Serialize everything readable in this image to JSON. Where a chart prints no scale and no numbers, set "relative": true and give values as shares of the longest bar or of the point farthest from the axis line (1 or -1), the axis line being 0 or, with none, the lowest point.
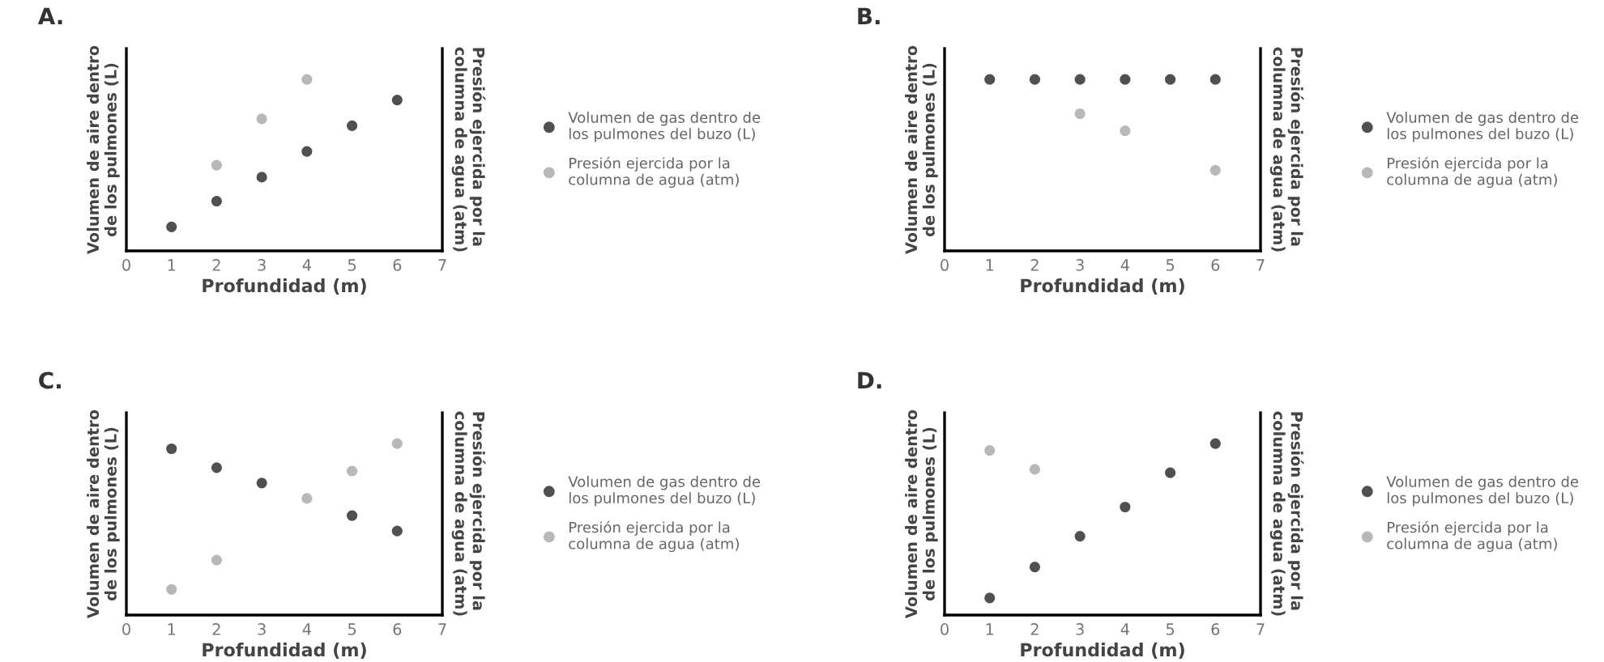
{
  "chart_data": [
    {
      "type": "scatter",
      "title": "A.",
      "xlabel": "Profundidad (m)",
      "ylabel": "Volumen de aire dentro\nde los pulmones (L)",
      "y2label": "Presión ejercida por la\ncolumna de agua (atm)",
      "relative": true,
      "x": [
        1,
        2,
        3,
        4,
        5,
        6
      ],
      "xlim": [
        0,
        7
      ],
      "xticks": [
        0,
        1,
        2,
        3,
        4,
        5,
        6,
        7
      ],
      "tick_labels": "x",
      "marker": "circle",
      "legend": "right",
      "series": [
        {
          "name": "Volumen de gas dentro de\nlos pulmones del buzo (L)",
          "color": "#505050",
          "values": [
            0.14,
            0.29,
            0.43,
            0.58,
            0.73,
            0.88
          ]
        },
        {
          "name": "Presión ejercida por la\ncolumna de agua (atm)",
          "color": "#b8b8b8",
          "values": [
            null,
            0.5,
            0.77,
            1.0,
            null,
            null
          ]
        }
      ]
    },
    {
      "type": "scatter",
      "title": "B.",
      "xlabel": "Profundidad (m)",
      "ylabel": "Volumen de aire dentro\nde los pulmones (L)",
      "y2label": "Presión ejercida por la\ncolumna de agua (atm)",
      "relative": true,
      "x": [
        1,
        2,
        3,
        4,
        5,
        6
      ],
      "xlim": [
        0,
        7
      ],
      "xticks": [
        0,
        1,
        2,
        3,
        4,
        5,
        6,
        7
      ],
      "tick_labels": "x",
      "marker": "circle",
      "legend": "right",
      "series": [
        {
          "name": "Volumen de gas dentro de\nlos pulmones del buzo (L)",
          "color": "#505050",
          "values": [
            1.0,
            1.0,
            1.0,
            1.0,
            1.0,
            1.0
          ]
        },
        {
          "name": "Presión ejercida por la\ncolumna de agua (atm)",
          "color": "#b8b8b8",
          "values": [
            null,
            null,
            0.8,
            0.7,
            null,
            0.47
          ]
        }
      ]
    },
    {
      "type": "scatter",
      "title": "C.",
      "xlabel": "Profundidad (m)",
      "ylabel": "Volumen de aire dentro\nde los pulmones (L)",
      "y2label": "Presión ejercida por la\ncolumna de agua (atm)",
      "relative": true,
      "x": [
        1,
        2,
        3,
        4,
        5,
        6
      ],
      "xlim": [
        0,
        7
      ],
      "xticks": [
        0,
        1,
        2,
        3,
        4,
        5,
        6,
        7
      ],
      "tick_labels": "x",
      "marker": "circle",
      "legend": "right",
      "series": [
        {
          "name": "Volumen de gas dentro de\nlos pulmones del buzo (L)",
          "color": "#505050",
          "values": [
            0.97,
            0.86,
            0.77,
            null,
            0.58,
            0.49
          ]
        },
        {
          "name": "Presión ejercida por la\ncolumna de agua (atm)",
          "color": "#b8b8b8",
          "values": [
            0.15,
            0.32,
            null,
            0.68,
            0.84,
            1.0
          ]
        }
      ]
    },
    {
      "type": "scatter",
      "title": "D.",
      "xlabel": "Profundidad (m)",
      "ylabel": "Volumen de aire dentro\nde los pulmones (L)",
      "y2label": "Presión ejercida por la\ncolumna de agua (atm)",
      "relative": true,
      "x": [
        1,
        2,
        3,
        4,
        5,
        6
      ],
      "xlim": [
        0,
        7
      ],
      "xticks": [
        0,
        1,
        2,
        3,
        4,
        5,
        6,
        7
      ],
      "tick_labels": "x",
      "marker": "circle",
      "legend": "right",
      "series": [
        {
          "name": "Volumen de gas dentro de\nlos pulmones del buzo (L)",
          "color": "#505050",
          "values": [
            0.1,
            0.28,
            0.46,
            0.63,
            0.83,
            1.0
          ]
        },
        {
          "name": "Presión ejercida por la\ncolumna de agua (atm)",
          "color": "#b8b8b8",
          "values": [
            0.96,
            0.85,
            null,
            null,
            null,
            null
          ]
        }
      ]
    }
  ]
}
